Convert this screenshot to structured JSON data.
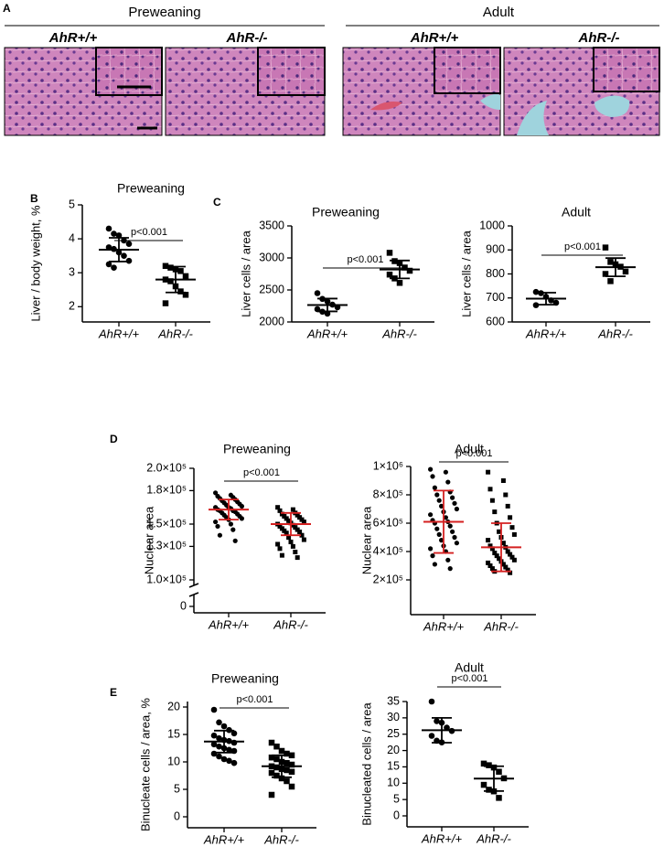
{
  "panel_a": {
    "label": "A",
    "groups": [
      {
        "title": "Preweaning",
        "images": [
          "AhR+/+",
          "AhR-/-"
        ]
      },
      {
        "title": "Adult",
        "images": [
          "AhR+/+",
          "AhR-/-"
        ]
      }
    ]
  },
  "chart_data": [
    {
      "type": "dotplot",
      "panel": "B",
      "title": "Preweaning",
      "y_label": "Liver / body weight, %",
      "categories": [
        "AhR+/+",
        "AhR-/-"
      ],
      "values": [
        [
          4.3,
          4.15,
          4.1,
          3.95,
          3.85,
          3.75,
          3.7,
          3.6,
          3.5,
          3.35,
          3.25,
          3.15
        ],
        [
          3.2,
          3.15,
          3.1,
          3.05,
          2.9,
          2.8,
          2.75,
          2.6,
          2.45,
          2.35,
          2.1
        ]
      ],
      "means": [
        3.68,
        2.8
      ],
      "errors": [
        0.35,
        0.38
      ],
      "annotation": "p<0.001",
      "ylim": [
        1.55,
        5
      ],
      "yticks": [
        2,
        3,
        4,
        5
      ],
      "color": "#000000",
      "error_color": "#000000"
    },
    {
      "type": "dotplot",
      "panel": "C",
      "title": "Preweaning",
      "y_label": "Liver cells / area",
      "categories": [
        "AhR+/+",
        "AhR-/-"
      ],
      "values": [
        [
          2450,
          2360,
          2320,
          2270,
          2230,
          2200,
          2160,
          2130
        ],
        [
          3080,
          2950,
          2920,
          2850,
          2800,
          2740,
          2680,
          2610
        ]
      ],
      "means": [
        2265,
        2820
      ],
      "errors": [
        100,
        140
      ],
      "annotation": "p<0.001",
      "ylim": [
        2000,
        3500
      ],
      "yticks": [
        2000,
        2500,
        3000,
        3500
      ],
      "color": "#000000",
      "error_color": "#000000"
    },
    {
      "type": "dotplot",
      "title": "Adult",
      "y_label": "Liver cells / area",
      "categories": [
        "AhR+/+",
        "AhR-/-"
      ],
      "values": [
        [
          725,
          720,
          705,
          690,
          680,
          670
        ],
        [
          910,
          850,
          840,
          830,
          810,
          800,
          770
        ]
      ],
      "means": [
        697,
        828
      ],
      "errors": [
        25,
        38
      ],
      "annotation": "p<0.001",
      "ylim": [
        600,
        1000
      ],
      "yticks": [
        600,
        700,
        800,
        900,
        1000
      ],
      "color": "#000000",
      "error_color": "#000000"
    },
    {
      "type": "dotplot",
      "panel": "D",
      "title": "Preweaning",
      "y_label": "Nuclear area",
      "categories": [
        "AhR+/+",
        "AhR-/-"
      ],
      "values": [
        [
          178000,
          176000,
          175000,
          174000,
          173000,
          172000,
          171000,
          170000,
          169000,
          168000,
          167000,
          166000,
          165000,
          165000,
          164000,
          163000,
          162000,
          162000,
          161000,
          160000,
          159000,
          158000,
          157000,
          156000,
          155000,
          154000,
          152000,
          150000,
          148000,
          145000,
          140000,
          135000
        ],
        [
          165000,
          163000,
          162000,
          160000,
          159000,
          158000,
          157000,
          156000,
          155000,
          154000,
          153000,
          152000,
          151000,
          150000,
          149000,
          148000,
          147000,
          146000,
          145000,
          144000,
          143000,
          142000,
          140000,
          138000,
          136000,
          134000,
          132000,
          130000,
          128000,
          125000,
          122000,
          120000
        ]
      ],
      "means": [
        163000,
        150000
      ],
      "errors": [
        9000,
        10000
      ],
      "annotation": "p<0.001",
      "ylim": [
        100000,
        200000
      ],
      "axis_break": true,
      "yticks": [
        {
          "value": 0,
          "label": "0"
        },
        {
          "value": 100000,
          "label": "1.0×10⁵"
        },
        {
          "value": 130000,
          "label": "1.3×10⁵"
        },
        {
          "value": 150000,
          "label": "1.5×10⁵"
        },
        {
          "value": 180000,
          "label": "1.8×10⁵"
        },
        {
          "value": 200000,
          "label": "2.0×10⁵"
        }
      ],
      "color": "#000000",
      "error_color": "#d42020"
    },
    {
      "type": "dotplot",
      "title": "Adult",
      "y_label": "Nuclear area",
      "categories": [
        "AhR+/+",
        "AhR-/-"
      ],
      "values": [
        [
          980000,
          960000,
          930000,
          890000,
          850000,
          820000,
          800000,
          780000,
          760000,
          740000,
          720000,
          700000,
          680000,
          660000,
          640000,
          620000,
          610000,
          600000,
          580000,
          560000,
          540000,
          520000,
          500000,
          480000,
          460000,
          440000,
          420000,
          400000,
          370000,
          340000,
          310000,
          280000
        ],
        [
          960000,
          900000,
          840000,
          800000,
          760000,
          720000,
          680000,
          640000,
          600000,
          570000,
          540000,
          520000,
          500000,
          480000,
          460000,
          440000,
          430000,
          420000,
          400000,
          390000,
          380000,
          370000,
          360000,
          350000,
          340000,
          330000,
          320000,
          310000,
          300000,
          290000,
          280000,
          270000,
          260000,
          250000
        ]
      ],
      "means": [
        610000,
        430000
      ],
      "errors": [
        220000,
        170000
      ],
      "annotation": "p<0.001",
      "ylim": [
        0,
        1000000
      ],
      "yticks": [
        {
          "value": 200000,
          "label": "2×10⁵"
        },
        {
          "value": 400000,
          "label": "4×10⁵"
        },
        {
          "value": 600000,
          "label": "6×10⁵"
        },
        {
          "value": 800000,
          "label": "8×10⁵"
        },
        {
          "value": 1000000,
          "label": "1×10⁶"
        }
      ],
      "color": "#000000",
      "error_color": "#d42020"
    },
    {
      "type": "dotplot",
      "panel": "E",
      "title": "Preweaning",
      "y_label": "Binucleate cells / area, %",
      "categories": [
        "AhR+/+",
        "AhR-/-"
      ],
      "values": [
        [
          19.5,
          17.2,
          16.5,
          15.8,
          15.2,
          14.8,
          14.3,
          14,
          13.8,
          13.5,
          13.2,
          12.8,
          12.5,
          12.2,
          12,
          11.5,
          11,
          10.5,
          10.2,
          9.8
        ],
        [
          13.5,
          12.8,
          12,
          11.5,
          11.2,
          10.8,
          10.5,
          10,
          9.8,
          9.5,
          9.2,
          9,
          8.7,
          8.5,
          8.2,
          8,
          7.5,
          7,
          6.5,
          5.5,
          4
        ]
      ],
      "means": [
        13.7,
        9.2
      ],
      "errors": [
        2,
        2
      ],
      "annotation": "p<0.001",
      "ylim": [
        0,
        21
      ],
      "yticks": [
        0,
        5,
        10,
        15,
        20
      ],
      "color": "#000000",
      "error_color": "#000000"
    },
    {
      "type": "dotplot",
      "title": "Adult",
      "y_label": "Binucleated cells / area",
      "categories": [
        "AhR+/+",
        "AhR-/-"
      ],
      "values": [
        [
          35,
          29,
          28.5,
          27,
          26,
          24.5,
          23,
          22.5
        ],
        [
          16,
          15.5,
          14.8,
          13.5,
          11.5,
          9.5,
          8,
          7.5,
          5.5
        ]
      ],
      "means": [
        26.2,
        11.4
      ],
      "errors": [
        3.8,
        3.8
      ],
      "annotation": "p<0.001",
      "ylim": [
        0,
        35
      ],
      "yticks": [
        0,
        5,
        10,
        15,
        20,
        25,
        30,
        35
      ],
      "color": "#000000",
      "error_color": "#000000"
    }
  ]
}
